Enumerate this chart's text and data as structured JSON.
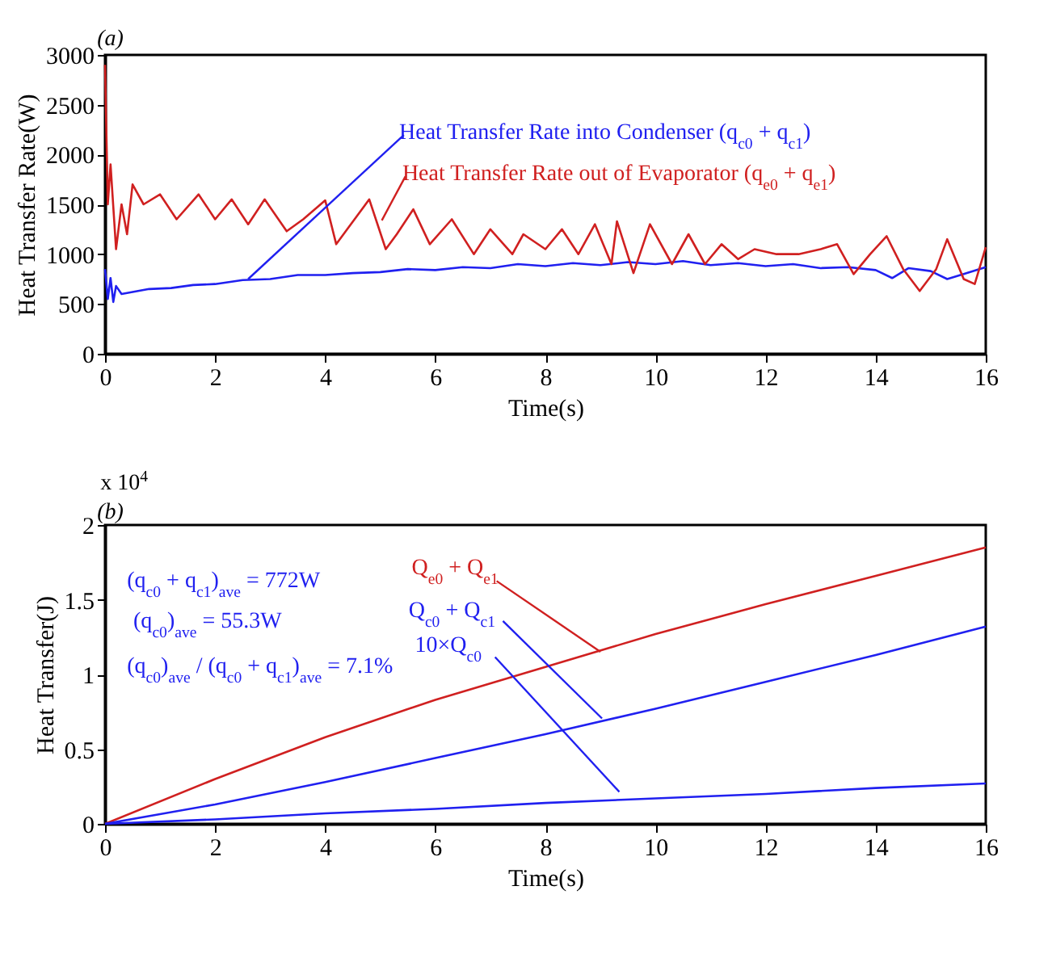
{
  "chart_data": [
    {
      "type": "line",
      "xlabel": "Time(s)",
      "ylabel": "Heat Transfer Rate(W)",
      "xlim": [
        0,
        16
      ],
      "xticks": [
        0,
        2,
        4,
        6,
        8,
        10,
        12,
        14,
        16
      ],
      "ylim": [
        0,
        3000
      ],
      "yticks": [
        0,
        500,
        1000,
        1500,
        2000,
        2500,
        3000
      ],
      "annotations": [
        "(a)"
      ],
      "series": [
        {
          "name": "Heat Transfer Rate into Condenser (q$_{c0}$ + q$_{c1}$)",
          "color": "#2020f0",
          "x": [
            0,
            0.05,
            0.1,
            0.15,
            0.2,
            0.3,
            0.5,
            0.8,
            1.2,
            1.6,
            2,
            2.5,
            3,
            3.5,
            4,
            4.5,
            5,
            5.5,
            6,
            6.5,
            7,
            7.5,
            8,
            8.5,
            9,
            9.5,
            10,
            10.5,
            11,
            11.5,
            12,
            12.5,
            13,
            13.5,
            14,
            14.3,
            14.6,
            15,
            15.3,
            15.6,
            16
          ],
          "values": [
            850,
            550,
            760,
            520,
            680,
            600,
            620,
            650,
            660,
            690,
            700,
            740,
            750,
            790,
            790,
            810,
            820,
            850,
            840,
            870,
            860,
            900,
            880,
            910,
            890,
            920,
            900,
            930,
            890,
            910,
            880,
            900,
            860,
            870,
            840,
            760,
            860,
            830,
            750,
            800,
            870
          ]
        },
        {
          "name": "Heat Transfer Rate out of  Evaporator (q$_{e0}$ + q$_{e1}$)",
          "color": "#d02020",
          "x": [
            0,
            0.05,
            0.1,
            0.2,
            0.3,
            0.4,
            0.5,
            0.7,
            1,
            1.3,
            1.7,
            2,
            2.3,
            2.6,
            2.9,
            3.3,
            3.6,
            4,
            4.2,
            4.4,
            4.8,
            5.1,
            5.3,
            5.6,
            5.9,
            6.3,
            6.7,
            7,
            7.4,
            7.6,
            8,
            8.3,
            8.6,
            8.9,
            9.2,
            9.3,
            9.6,
            9.9,
            10.3,
            10.6,
            10.9,
            11.2,
            11.5,
            11.8,
            12.2,
            12.6,
            13,
            13.3,
            13.6,
            13.9,
            14.2,
            14.5,
            14.8,
            15.1,
            15.3,
            15.6,
            15.8,
            16
          ],
          "values": [
            2900,
            1500,
            1900,
            1050,
            1500,
            1200,
            1700,
            1500,
            1600,
            1350,
            1600,
            1350,
            1550,
            1300,
            1550,
            1230,
            1350,
            1540,
            1100,
            1250,
            1550,
            1050,
            1200,
            1450,
            1100,
            1350,
            1000,
            1250,
            1000,
            1200,
            1050,
            1250,
            1000,
            1300,
            900,
            1330,
            810,
            1300,
            900,
            1200,
            900,
            1100,
            950,
            1050,
            1000,
            1000,
            1050,
            1100,
            800,
            1000,
            1180,
            850,
            630,
            850,
            1150,
            750,
            700,
            1070
          ]
        }
      ]
    },
    {
      "type": "line",
      "xlabel": "Time(s)",
      "ylabel": "Heat Transfer(J)",
      "xlim": [
        0,
        16
      ],
      "xticks": [
        0,
        2,
        4,
        6,
        8,
        10,
        12,
        14,
        16
      ],
      "ylim": [
        0,
        2
      ],
      "yticks": [
        0,
        0.5,
        1,
        1.5,
        2
      ],
      "annotations": [
        "(b)",
        "x 10$^{4}$",
        "(q$_{c0}$ + q$_{c1}$)$_{ave}$ = 772W",
        "(q$_{c0}$)$_{ave}$ = 55.3W",
        "(q$_{c0}$)$_{ave}$ / (q$_{c0}$ + q$_{c1}$)$_{ave}$ = 7.1%"
      ],
      "series": [
        {
          "name": "Q$_{e0}$ + Q$_{e1}$",
          "color": "#d02020",
          "x": [
            0,
            2,
            4,
            6,
            8,
            10,
            12,
            14,
            16
          ],
          "values": [
            0,
            0.3,
            0.58,
            0.83,
            1.05,
            1.27,
            1.47,
            1.66,
            1.85
          ]
        },
        {
          "name": "Q$_{c0}$ + Q$_{c1}$",
          "color": "#2020f0",
          "x": [
            0,
            2,
            4,
            6,
            8,
            10,
            12,
            14,
            16
          ],
          "values": [
            0,
            0.13,
            0.28,
            0.44,
            0.6,
            0.77,
            0.95,
            1.13,
            1.32
          ]
        },
        {
          "name": "10×Q$_{c0}$",
          "color": "#2020f0",
          "x": [
            0,
            2,
            4,
            6,
            8,
            10,
            12,
            14,
            16
          ],
          "values": [
            0,
            0.03,
            0.07,
            0.1,
            0.14,
            0.17,
            0.2,
            0.24,
            0.27
          ]
        }
      ]
    }
  ]
}
